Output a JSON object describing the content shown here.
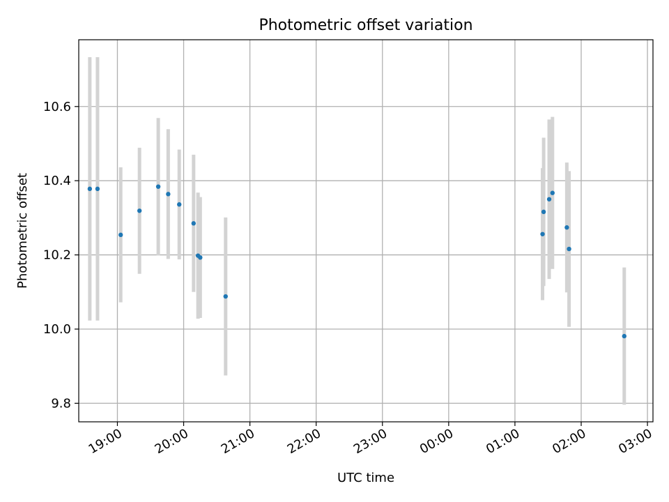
{
  "chart_data": {
    "type": "scatter",
    "title": "Photometric offset variation",
    "xlabel": "UTC time",
    "ylabel": "Photometric offset",
    "grid": true,
    "x_unit": "UTC time (hours, continuing past midnight)",
    "xlim": [
      "18:25",
      "03:05"
    ],
    "ylim": [
      9.75,
      10.78
    ],
    "x_ticks": [
      {
        "label": "19:00",
        "value": 19
      },
      {
        "label": "20:00",
        "value": 20
      },
      {
        "label": "21:00",
        "value": 21
      },
      {
        "label": "22:00",
        "value": 22
      },
      {
        "label": "23:00",
        "value": 23
      },
      {
        "label": "00:00",
        "value": 24
      },
      {
        "label": "01:00",
        "value": 25
      },
      {
        "label": "02:00",
        "value": 26
      },
      {
        "label": "03:00",
        "value": 27
      }
    ],
    "y_ticks": [
      {
        "label": "9.8",
        "value": 9.8
      },
      {
        "label": "10.0",
        "value": 10.0
      },
      {
        "label": "10.2",
        "value": 10.2
      },
      {
        "label": "10.4",
        "value": 10.4
      },
      {
        "label": "10.6",
        "value": 10.6
      }
    ],
    "colors": {
      "point": "#1f77b4",
      "errorbar": "#d3d3d3",
      "grid": "#b0b0b0",
      "frame": "#000000"
    },
    "points": [
      {
        "time": "18:35",
        "y": 10.378,
        "err": 0.355
      },
      {
        "time": "18:42",
        "y": 10.378,
        "err": 0.355
      },
      {
        "time": "19:03",
        "y": 10.254,
        "err": 0.182
      },
      {
        "time": "19:20",
        "y": 10.319,
        "err": 0.17
      },
      {
        "time": "19:37",
        "y": 10.384,
        "err": 0.185
      },
      {
        "time": "19:46",
        "y": 10.364,
        "err": 0.175
      },
      {
        "time": "19:56",
        "y": 10.336,
        "err": 0.148
      },
      {
        "time": "20:09",
        "y": 10.285,
        "err": 0.185
      },
      {
        "time": "20:13",
        "y": 10.198,
        "err": 0.17
      },
      {
        "time": "20:15",
        "y": 10.193,
        "err": 0.163
      },
      {
        "time": "20:38",
        "y": 10.088,
        "err": 0.213
      },
      {
        "time": "01:25",
        "y": 10.256,
        "err": 0.178
      },
      {
        "time": "01:26",
        "y": 10.316,
        "err": 0.2
      },
      {
        "time": "01:31",
        "y": 10.35,
        "err": 0.215
      },
      {
        "time": "01:34",
        "y": 10.367,
        "err": 0.205
      },
      {
        "time": "01:47",
        "y": 10.274,
        "err": 0.175
      },
      {
        "time": "01:49",
        "y": 10.216,
        "err": 0.21
      },
      {
        "time": "02:39",
        "y": 9.981,
        "err": 0.185
      }
    ]
  }
}
